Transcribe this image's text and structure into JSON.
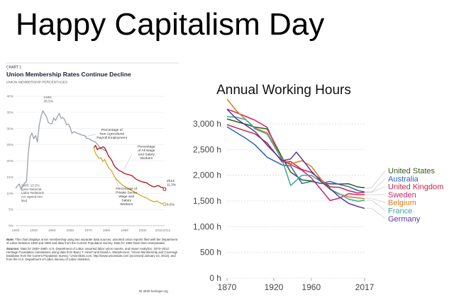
{
  "slide_title": "Happy Capitalism Day",
  "chart_data": [
    {
      "type": "line",
      "chart_label": "CHART 1",
      "title": "Union Membership Rates Continue Decline",
      "ylabel": "UNION MEMBERSHIP PERCENTAGES",
      "ylim": [
        0,
        40
      ],
      "xlim": [
        1930,
        2012
      ],
      "xticks": [
        "1930",
        "1940",
        "1950",
        "1960",
        "1970",
        "1980",
        "1990",
        "2000",
        "2010",
        "2012"
      ],
      "yticks": [
        "0%",
        "5%",
        "10%",
        "15%",
        "20%",
        "25%",
        "30%",
        "35%",
        "40%"
      ],
      "grid": true,
      "series": [
        {
          "name": "Percentage of Non-Agricultural Payroll Employment",
          "color": "#9aa0a6",
          "points": [
            [
              1930,
              11.6
            ],
            [
              1932,
              12.9
            ],
            [
              1933,
              11.3
            ],
            [
              1935,
              13.2
            ],
            [
              1936,
              13.7
            ],
            [
              1937,
              22.6
            ],
            [
              1938,
              27.5
            ],
            [
              1939,
              28.6
            ],
            [
              1940,
              26.9
            ],
            [
              1941,
              27.9
            ],
            [
              1942,
              25.9
            ],
            [
              1943,
              31.0
            ],
            [
              1944,
              33.8
            ],
            [
              1945,
              35.5
            ],
            [
              1946,
              34.5
            ],
            [
              1947,
              33.7
            ],
            [
              1948,
              31.9
            ],
            [
              1949,
              31.5
            ],
            [
              1950,
              31.5
            ],
            [
              1951,
              33.3
            ],
            [
              1952,
              32.5
            ],
            [
              1953,
              33.7
            ],
            [
              1954,
              34.7
            ],
            [
              1955,
              33.2
            ],
            [
              1956,
              33.4
            ],
            [
              1957,
              32.8
            ],
            [
              1958,
              31.2
            ],
            [
              1959,
              31.4
            ],
            [
              1960,
              30.4
            ],
            [
              1961,
              28.5
            ],
            [
              1962,
              29.0
            ],
            [
              1963,
              28.9
            ],
            [
              1964,
              28.5
            ],
            [
              1965,
              28.4
            ],
            [
              1966,
              28.1
            ],
            [
              1967,
              27.9
            ],
            [
              1968,
              27.9
            ],
            [
              1969,
              27.0
            ],
            [
              1970,
              27.0
            ],
            [
              1972,
              26.3
            ],
            [
              1974,
              25.8
            ],
            [
              1976,
              24.5
            ],
            [
              1978,
              23.6
            ],
            [
              1980,
              23.0
            ]
          ]
        },
        {
          "name": "Percentage of All Wage and Salary Workers",
          "color": "#b0121b",
          "points": [
            [
              1973,
              24.0
            ],
            [
              1974,
              24.8
            ],
            [
              1975,
              23.5
            ],
            [
              1976,
              24.0
            ],
            [
              1977,
              23.9
            ],
            [
              1978,
              24.4
            ],
            [
              1979,
              24.1
            ],
            [
              1980,
              23.0
            ],
            [
              1981,
              21.7
            ],
            [
              1983,
              20.1
            ],
            [
              1984,
              18.8
            ],
            [
              1985,
              18.0
            ],
            [
              1986,
              17.5
            ],
            [
              1987,
              17.0
            ],
            [
              1988,
              16.8
            ],
            [
              1990,
              16.1
            ],
            [
              1992,
              15.8
            ],
            [
              1994,
              15.5
            ],
            [
              1996,
              14.5
            ],
            [
              1998,
              13.9
            ],
            [
              2000,
              13.5
            ],
            [
              2002,
              13.3
            ],
            [
              2004,
              12.5
            ],
            [
              2006,
              12.0
            ],
            [
              2007,
              12.1
            ],
            [
              2008,
              12.4
            ],
            [
              2009,
              12.3
            ],
            [
              2010,
              11.9
            ],
            [
              2011,
              11.8
            ],
            [
              2012,
              11.3
            ]
          ]
        },
        {
          "name": "Percentage of Private Sector Wage and Salary Workers",
          "color": "#e2a41c",
          "points": [
            [
              1973,
              24.2
            ],
            [
              1974,
              22.3
            ],
            [
              1975,
              21.5
            ],
            [
              1976,
              20.8
            ],
            [
              1977,
              21.0
            ],
            [
              1978,
              19.8
            ],
            [
              1979,
              20.5
            ],
            [
              1980,
              19.3
            ],
            [
              1981,
              18.1
            ],
            [
              1983,
              16.8
            ],
            [
              1984,
              15.6
            ],
            [
              1985,
              14.6
            ],
            [
              1986,
              14.0
            ],
            [
              1987,
              13.5
            ],
            [
              1988,
              12.9
            ],
            [
              1990,
              12.1
            ],
            [
              1992,
              11.5
            ],
            [
              1994,
              10.9
            ],
            [
              1996,
              10.2
            ],
            [
              1998,
              9.6
            ],
            [
              2000,
              9.0
            ],
            [
              2002,
              8.6
            ],
            [
              2004,
              7.9
            ],
            [
              2006,
              7.4
            ],
            [
              2008,
              7.6
            ],
            [
              2009,
              7.2
            ],
            [
              2010,
              6.9
            ],
            [
              2011,
              6.9
            ],
            [
              2012,
              6.6
            ]
          ]
        }
      ],
      "annotations": [
        {
          "text": "1945:",
          "text2": "35.5%"
        },
        {
          "text": "1935: 13.2%",
          "text2": "(year National",
          "text3": "Labor Relations",
          "text4": "Act signed into",
          "text5": "law)"
        },
        {
          "text": "2012:",
          "text2": "11.3%"
        },
        {
          "text": "6.6%"
        }
      ],
      "series_labels": [
        [
          "Percentage of",
          "Non-Agricultural",
          "Payroll Employment"
        ],
        [
          "Percentage",
          "of All Wage",
          "and Salary",
          "Workers"
        ],
        [
          "Percentage of",
          "Private Sector",
          "Wage and",
          "Salary",
          "Workers"
        ]
      ],
      "note": "This chart displays union membership using two separate data sources: assorted union reports filed with the Department of Labor between 1930 and 1980 and data from the Current Population Survey. Data for 1982 have been interpolated.",
      "note_label": "Note:",
      "sources_label": "Sources:",
      "sources": "Data for 1930–1980: U.S. Department of Labor, assorted labor union reports, and Haver Analytics; 1973–2012: Heritage Foundation calculations using data from Barry T. Hirsch and David A. Macpherson, \"Union Membership and Coverage Database from the Current Population Survey,\" Unionstats.com, http://www.unionstats.com (accessed January 23, 2013), and from the U.S. Department of Labor, Bureau of Labor Statistics.",
      "footer": "IB 3839  heritage.org"
    },
    {
      "type": "line",
      "title": "Annual Working Hours",
      "xlim": [
        1870,
        2017
      ],
      "ylim": [
        0,
        3400
      ],
      "xticks": [
        "1870",
        "1920",
        "1960",
        "2017"
      ],
      "yticks": [
        "0 h",
        "500 h",
        "1,000 h",
        "1,500 h",
        "2,000 h",
        "2,500 h",
        "3,000 h"
      ],
      "grid": true,
      "legend_placement": "right",
      "series": [
        {
          "name": "United States",
          "color": "#2f5d1e",
          "points": [
            [
              1870,
              3096
            ],
            [
              1880,
              3044
            ],
            [
              1890,
              2993
            ],
            [
              1900,
              2938
            ],
            [
              1913,
              2900
            ],
            [
              1929,
              2342
            ],
            [
              1938,
              2062
            ],
            [
              1950,
              1909
            ],
            [
              1960,
              1890
            ],
            [
              1970,
              1840
            ],
            [
              1980,
              1834
            ],
            [
              1990,
              1829
            ],
            [
              2000,
              1834
            ],
            [
              2010,
              1771
            ],
            [
              2017,
              1757
            ]
          ]
        },
        {
          "name": "Australia",
          "color": "#2e63b7",
          "points": [
            [
              1870,
              2945
            ],
            [
              1880,
              2830
            ],
            [
              1890,
              2720
            ],
            [
              1900,
              2590
            ],
            [
              1913,
              2350
            ],
            [
              1929,
              2200
            ],
            [
              1938,
              2180
            ],
            [
              1950,
              1840
            ],
            [
              1960,
              1880
            ],
            [
              1970,
              1840
            ],
            [
              1980,
              1880
            ],
            [
              1990,
              1820
            ],
            [
              2000,
              1778
            ],
            [
              2010,
              1701
            ],
            [
              2017,
              1676
            ]
          ]
        },
        {
          "name": "United Kingdom",
          "color": "#c4234d",
          "points": [
            [
              1870,
              2984
            ],
            [
              1880,
              2922
            ],
            [
              1890,
              2862
            ],
            [
              1900,
              2806
            ],
            [
              1913,
              2624
            ],
            [
              1929,
              2257
            ],
            [
              1938,
              2267
            ],
            [
              1950,
              2112
            ],
            [
              1960,
              2055
            ],
            [
              1970,
              1917
            ],
            [
              1980,
              1774
            ],
            [
              1990,
              1765
            ],
            [
              2000,
              1700
            ],
            [
              2010,
              1655
            ],
            [
              2017,
              1670
            ]
          ]
        },
        {
          "name": "Sweden",
          "color": "#d1236f",
          "points": [
            [
              1870,
              3286
            ],
            [
              1880,
              3220
            ],
            [
              1890,
              3146
            ],
            [
              1900,
              3070
            ],
            [
              1913,
              2930
            ],
            [
              1929,
              2275
            ],
            [
              1938,
              2208
            ],
            [
              1950,
              2100
            ],
            [
              1960,
              1950
            ],
            [
              1970,
              1733
            ],
            [
              1980,
              1508
            ],
            [
              1990,
              1556
            ],
            [
              2000,
              1642
            ],
            [
              2010,
              1624
            ],
            [
              2017,
              1621
            ]
          ]
        },
        {
          "name": "Belgium",
          "color": "#d97d1b",
          "points": [
            [
              1870,
              3483
            ],
            [
              1880,
              3256
            ],
            [
              1890,
              3084
            ],
            [
              1900,
              2919
            ],
            [
              1913,
              2826
            ],
            [
              1929,
              2314
            ],
            [
              1938,
              2225
            ],
            [
              1950,
              2283
            ],
            [
              1960,
              2174
            ],
            [
              1970,
              1932
            ],
            [
              1980,
              1724
            ],
            [
              1990,
              1633
            ],
            [
              2000,
              1580
            ],
            [
              2010,
              1560
            ],
            [
              2017,
              1545
            ]
          ]
        },
        {
          "name": "France",
          "color": "#35a9a0",
          "points": [
            [
              1870,
              3140
            ],
            [
              1880,
              3130
            ],
            [
              1890,
              3084
            ],
            [
              1900,
              2900
            ],
            [
              1913,
              2800
            ],
            [
              1929,
              2297
            ],
            [
              1938,
              1800
            ],
            [
              1950,
              2000
            ],
            [
              1960,
              2000
            ],
            [
              1970,
              1880
            ],
            [
              1980,
              1730
            ],
            [
              1990,
              1640
            ],
            [
              2000,
              1535
            ],
            [
              2010,
              1494
            ],
            [
              2017,
              1514
            ]
          ]
        },
        {
          "name": "Germany",
          "color": "#5b3a94",
          "points": [
            [
              1870,
              3284
            ],
            [
              1880,
              3100
            ],
            [
              1890,
              2975
            ],
            [
              1900,
              2850
            ],
            [
              1913,
              2584
            ],
            [
              1929,
              2284
            ],
            [
              1938,
              2316
            ],
            [
              1944,
              2450
            ],
            [
              1950,
              2316
            ],
            [
              1960,
              2081
            ],
            [
              1970,
              1887
            ],
            [
              1980,
              1742
            ],
            [
              1990,
              1578
            ],
            [
              2000,
              1452
            ],
            [
              2010,
              1390
            ],
            [
              2017,
              1356
            ]
          ]
        }
      ]
    }
  ]
}
